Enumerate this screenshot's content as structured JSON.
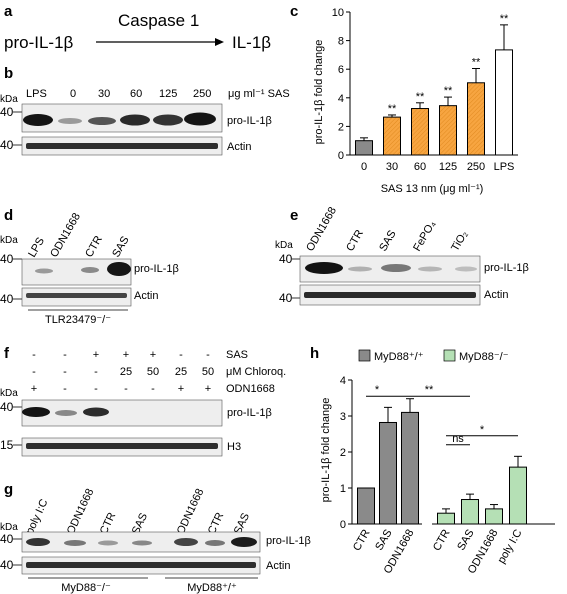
{
  "panel_labels": {
    "a": "a",
    "b": "b",
    "c": "c",
    "d": "d",
    "e": "e",
    "f": "f",
    "g": "g",
    "h": "h"
  },
  "panel_a": {
    "substrate": "pro-IL-1β",
    "enzyme": "Caspase 1",
    "product": "IL-1β"
  },
  "panel_b": {
    "lanes": [
      "LPS",
      "0",
      "30",
      "60",
      "125",
      "250"
    ],
    "unit": "μg ml⁻¹ SAS",
    "kda_header": "kDa",
    "markers": [
      "40",
      "40"
    ],
    "band_labels": [
      "pro-IL-1β",
      "Actin"
    ]
  },
  "panel_d": {
    "lanes": [
      "LPS",
      "ODN1668",
      "CTR",
      "SAS"
    ],
    "kda_header": "kDa",
    "markers": [
      "40",
      "40"
    ],
    "band_labels": [
      "pro-IL-1β",
      "Actin"
    ],
    "footer": "TLR23479⁻/⁻"
  },
  "panel_e": {
    "lanes": [
      "ODN1668",
      "CTR",
      "SAS",
      "FePO₄",
      "TiO₂"
    ],
    "kda_header": "kDa",
    "markers": [
      "40",
      "40"
    ],
    "band_labels": [
      "pro-IL-1β",
      "Actin"
    ]
  },
  "panel_f": {
    "conditions": [
      {
        "label": "SAS",
        "values": [
          "-",
          "-",
          "+",
          "+",
          "+",
          "-",
          "-"
        ]
      },
      {
        "label": "μM Chloroq.",
        "values": [
          "-",
          "-",
          "-",
          "25",
          "50",
          "25",
          "50"
        ]
      },
      {
        "label": "ODN1668",
        "values": [
          "+",
          "-",
          "-",
          "-",
          "-",
          "+",
          "+"
        ]
      }
    ],
    "kda_header": "kDa",
    "markers": [
      "40",
      "15"
    ],
    "band_labels": [
      "pro-IL-1β",
      "H3"
    ]
  },
  "panel_g": {
    "lanes_left": [
      "poly I:C",
      "ODN1668",
      "CTR",
      "SAS"
    ],
    "lanes_right": [
      "ODN1668",
      "CTR",
      "SAS"
    ],
    "kda_header": "kDa",
    "markers": [
      "40",
      "40"
    ],
    "band_labels": [
      "pro-IL-1β",
      "Actin"
    ],
    "groups": [
      "MyD88⁻/⁻",
      "MyD88⁺/⁺"
    ]
  },
  "colors": {
    "orange": "#f7a541",
    "gray": "#8a8a8a",
    "dark": "#3d3d3d",
    "green": "#b5e0b5"
  },
  "chart_data": [
    {
      "type": "bar",
      "panel": "c",
      "categories": [
        "0",
        "30",
        "60",
        "125",
        "250",
        "LPS"
      ],
      "values": [
        1.0,
        2.65,
        3.25,
        3.45,
        5.05,
        7.35
      ],
      "errors": [
        0.2,
        0.15,
        0.4,
        0.6,
        1.0,
        1.75
      ],
      "significance": [
        "",
        "**",
        "**",
        "**",
        "**",
        "**"
      ],
      "bar_colors": [
        "#8a8a8a",
        "#f7a541",
        "#f7a541",
        "#f7a541",
        "#f7a541",
        "#ffffff"
      ],
      "hatched": [
        false,
        true,
        true,
        true,
        true,
        false
      ],
      "xlabel": "SAS 13 nm (μg ml⁻¹)",
      "ylabel": "pro-IL-1β fold change",
      "ylim": [
        0,
        10
      ],
      "yticks": [
        "0",
        "2",
        "4",
        "6",
        "8",
        "10"
      ]
    },
    {
      "type": "bar",
      "panel": "h",
      "categories": [
        "CTR",
        "SAS",
        "ODN1668",
        "CTR",
        "SAS",
        "ODN1668",
        "poly I:C"
      ],
      "values": [
        1.0,
        2.82,
        3.1,
        0.3,
        0.68,
        0.42,
        1.58
      ],
      "errors": [
        0.0,
        0.42,
        0.38,
        0.12,
        0.15,
        0.12,
        0.3
      ],
      "series": [
        {
          "name": "MyD88⁺/⁺",
          "color": "#8a8a8a",
          "indices": [
            0,
            1,
            2
          ]
        },
        {
          "name": "MyD88⁻/⁻",
          "color": "#b5e0b5",
          "indices": [
            3,
            4,
            5,
            6
          ]
        }
      ],
      "significance": [
        {
          "from": 0,
          "to": 1,
          "label": "*"
        },
        {
          "from": 1,
          "to": 4,
          "label": "**"
        },
        {
          "from": 3,
          "to": 4,
          "label": "ns"
        },
        {
          "from": 3,
          "to": 6,
          "label": "*"
        }
      ],
      "ylabel": "pro-IL-1β fold change",
      "ylim": [
        0,
        4
      ],
      "yticks": [
        "0",
        "1",
        "2",
        "3",
        "4"
      ]
    }
  ]
}
